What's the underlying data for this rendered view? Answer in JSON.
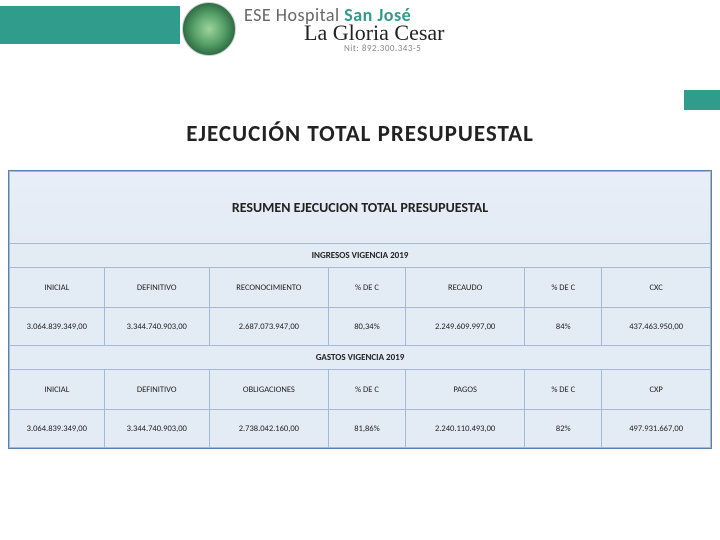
{
  "header": {
    "hospital_prefix": "ESE Hospital ",
    "hospital_name_accent": "San José",
    "script_line": "La Gloria Cesar",
    "nit_label": "Nit: 892.300.343-5",
    "accent_color": "#2f9c8c"
  },
  "title": "EJECUCIÓN  TOTAL PRESUPUESTAL",
  "table": {
    "summary_title": "RESUMEN EJECUCION TOTAL PRESUPUESTAL",
    "section_ingresos": "INGRESOS VIGENCIA 2019",
    "section_gastos": "GASTOS VIGENCIA 2019",
    "ingresos_cols": [
      "INICIAL",
      "DEFINITIVO",
      "RECONOCIMIENTO",
      "% DE C",
      "RECAUDO",
      "% DE C",
      "CXC"
    ],
    "ingresos_row": [
      "3.064.839.349,00",
      "3.344.740.903,00",
      "2.687.073.947,00",
      "80,34%",
      "2.249.609.997,00",
      "84%",
      "437.463.950,00"
    ],
    "gastos_cols": [
      "INICIAL",
      "DEFINITIVO",
      "OBLIGACIONES",
      "% DE C",
      "PAGOS",
      "% DE C",
      "CXP"
    ],
    "gastos_row": [
      "3.064.839.349,00",
      "3.344.740.903,00",
      "2.738.042.160,00",
      "81,86%",
      "2.240.110.493,00",
      "82%",
      "497.931.667,00"
    ],
    "border_color": "#5b7fb0",
    "cell_border_color": "#a5b8d4",
    "bg_gradient_top": "#e8eef7",
    "bg_gradient_bottom": "#dbe5f1"
  }
}
